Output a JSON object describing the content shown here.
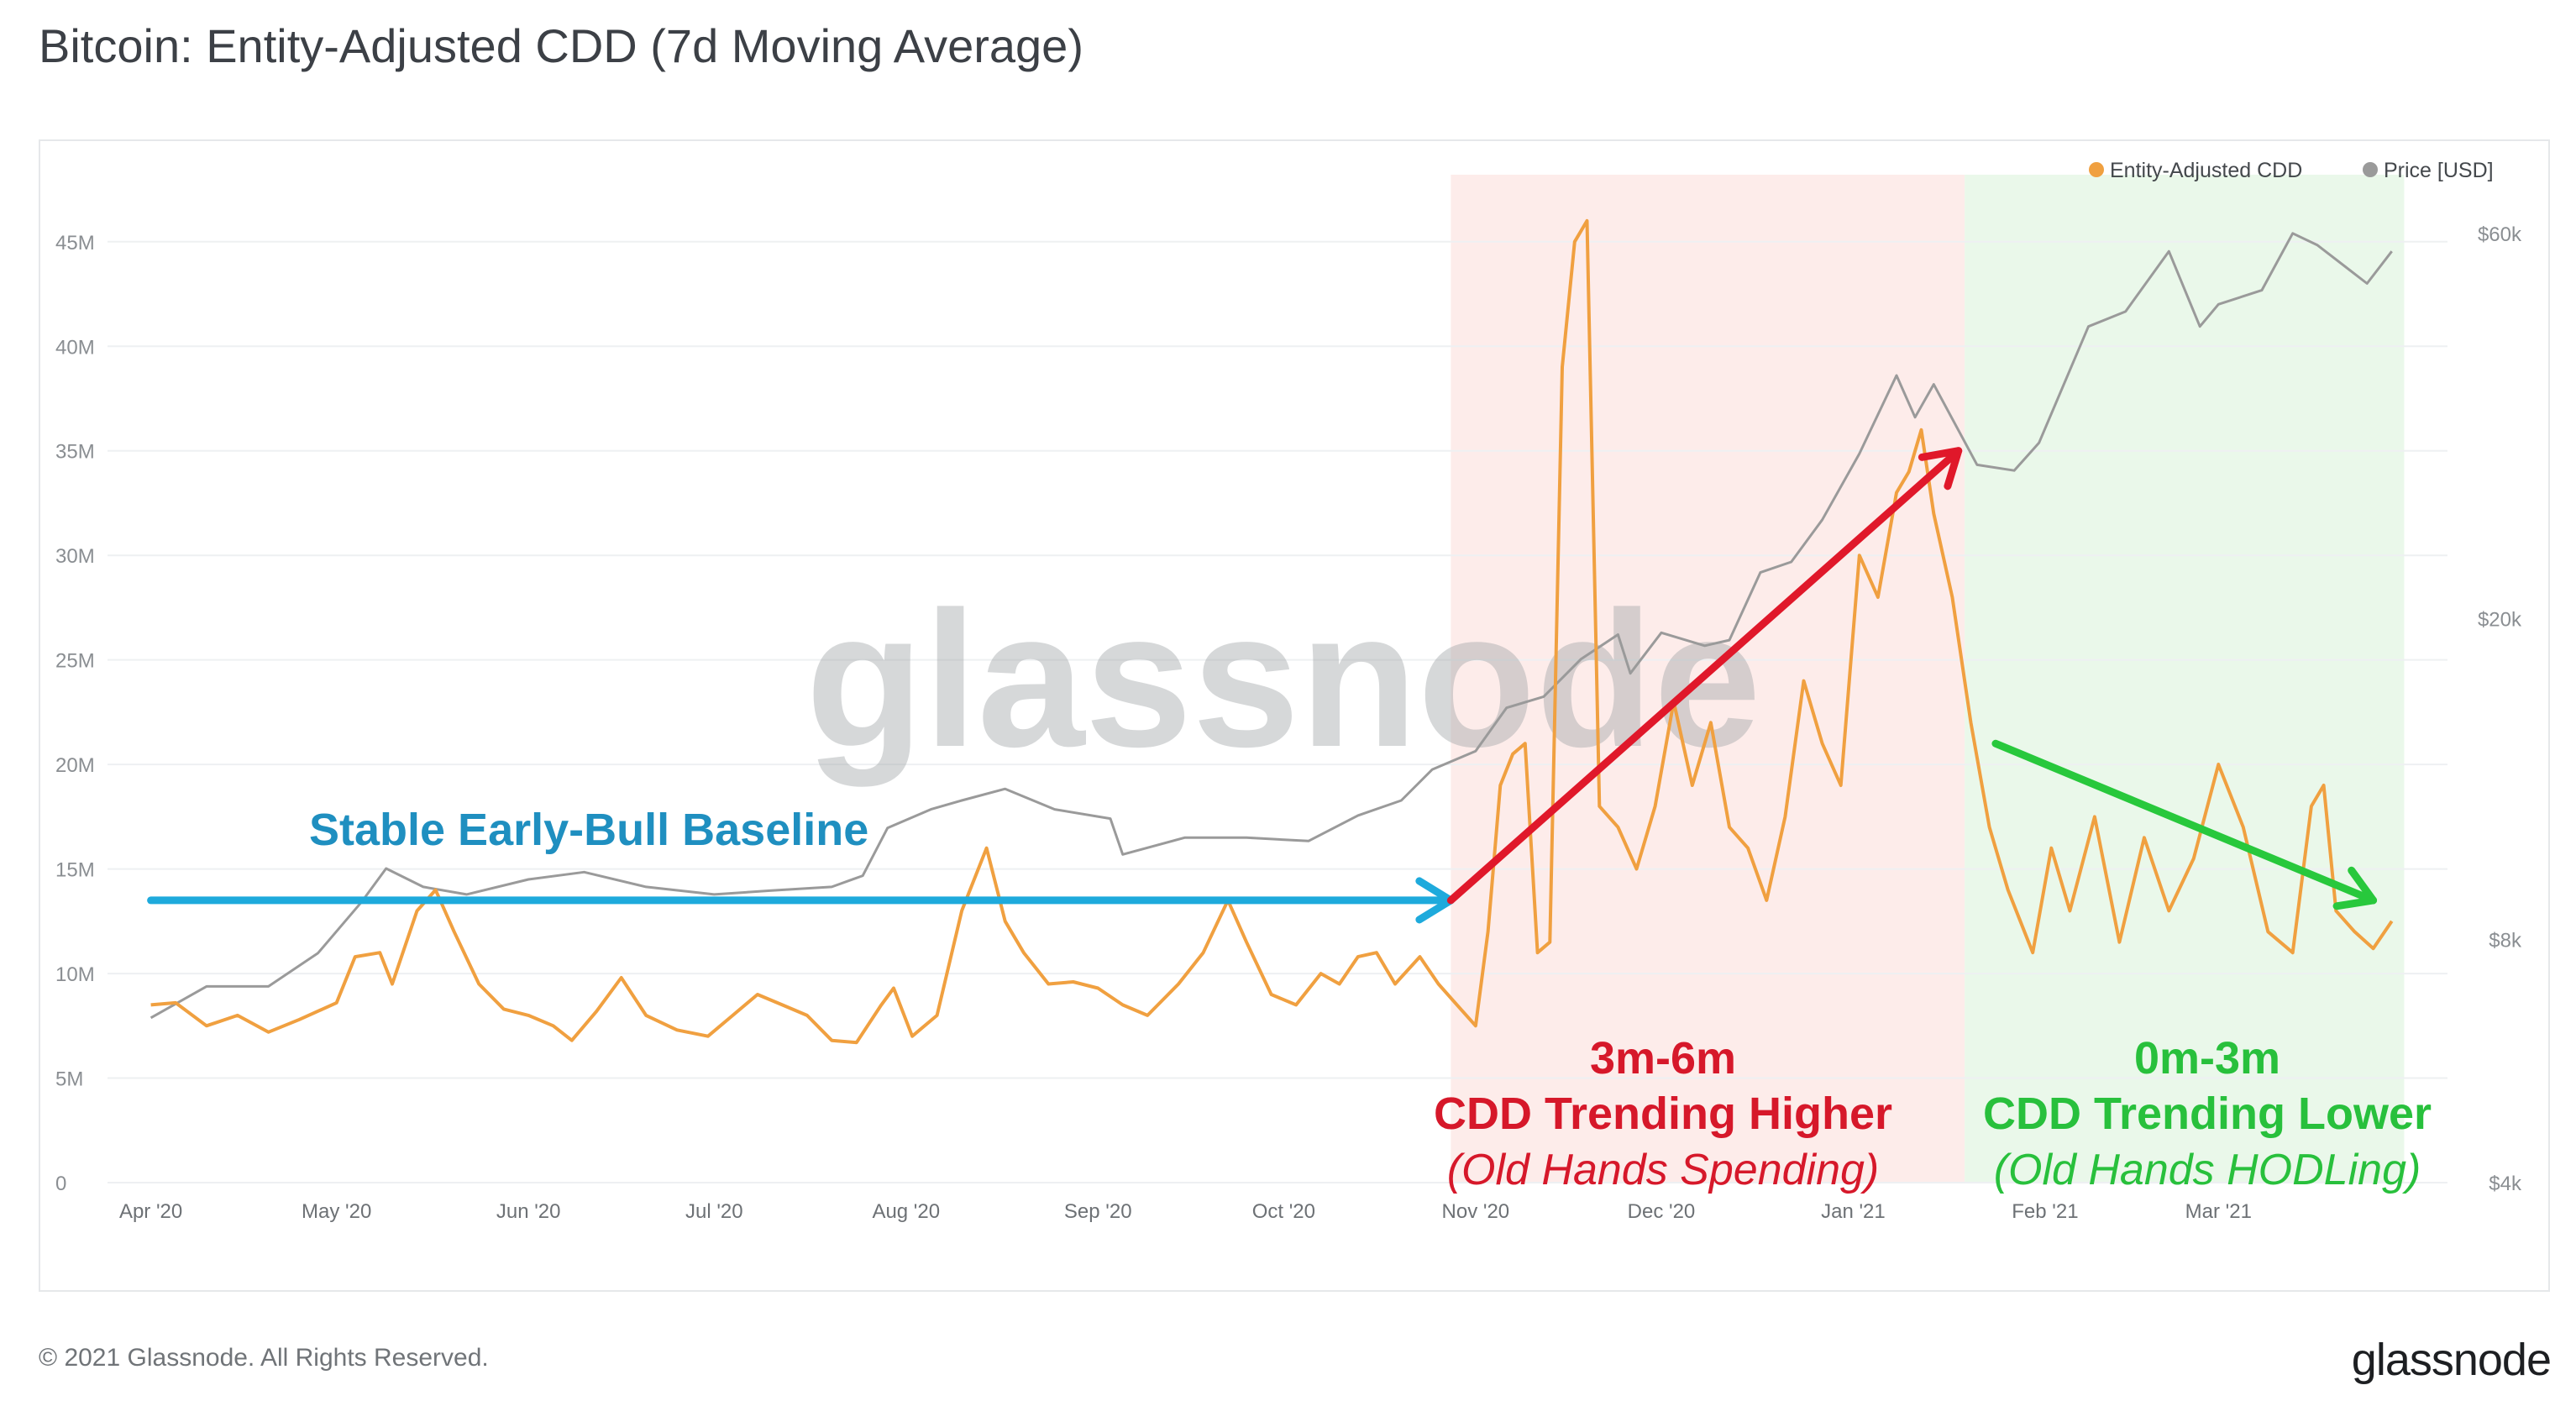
{
  "title": "Bitcoin: Entity-Adjusted CDD (7d Moving Average)",
  "copyright": "© 2021 Glassnode. All Rights Reserved.",
  "brand": "glassnode",
  "watermark": "glassnode",
  "colors": {
    "cdd": "#f0a040",
    "price": "#9a9a9a",
    "baseline_arrow": "#1eaadc",
    "higher_arrow": "#e0182a",
    "lower_arrow": "#28c83c",
    "higher_band": "#fdecea",
    "lower_band": "#eaf8ea",
    "baseline_text": "#1f8fc0",
    "higher_text": "#d6182a",
    "lower_text": "#28c03c"
  },
  "icons": {
    "legend_marker": "circle-dot-icon"
  },
  "chart_data": {
    "type": "line",
    "x_ticks": [
      "Apr '20",
      "May '20",
      "Jun '20",
      "Jul '20",
      "Aug '20",
      "Sep '20",
      "Oct '20",
      "Nov '20",
      "Dec '20",
      "Jan '21",
      "Feb '21",
      "Mar '21"
    ],
    "y_left_ticks": [
      "0",
      "5M",
      "10M",
      "15M",
      "20M",
      "25M",
      "30M",
      "35M",
      "40M",
      "45M"
    ],
    "y_left_range": [
      0,
      47000000
    ],
    "y_right_ticks": [
      "$4k",
      "$8k",
      "$20k",
      "$60k"
    ],
    "y_right_scale": "log",
    "y_right_range": [
      4000,
      66000
    ],
    "grid": true,
    "legend": {
      "position": "top-right",
      "items": [
        {
          "label": "Entity-Adjusted CDD",
          "color": "#f0a040"
        },
        {
          "label": "Price [USD]",
          "color": "#9a9a9a"
        }
      ]
    },
    "series": [
      {
        "name": "Entity-Adjusted CDD",
        "axis": "left",
        "color": "#f0a040",
        "points": [
          [
            "2020-04-01",
            8500000
          ],
          [
            "2020-04-05",
            8600000
          ],
          [
            "2020-04-10",
            7500000
          ],
          [
            "2020-04-15",
            8000000
          ],
          [
            "2020-04-20",
            7200000
          ],
          [
            "2020-04-25",
            7800000
          ],
          [
            "2020-05-01",
            8600000
          ],
          [
            "2020-05-04",
            10800000
          ],
          [
            "2020-05-08",
            11000000
          ],
          [
            "2020-05-10",
            9500000
          ],
          [
            "2020-05-14",
            13000000
          ],
          [
            "2020-05-17",
            14000000
          ],
          [
            "2020-05-20",
            12000000
          ],
          [
            "2020-05-24",
            9500000
          ],
          [
            "2020-05-28",
            8300000
          ],
          [
            "2020-06-01",
            8000000
          ],
          [
            "2020-06-05",
            7500000
          ],
          [
            "2020-06-08",
            6800000
          ],
          [
            "2020-06-12",
            8200000
          ],
          [
            "2020-06-16",
            9800000
          ],
          [
            "2020-06-20",
            8000000
          ],
          [
            "2020-06-25",
            7300000
          ],
          [
            "2020-06-30",
            7000000
          ],
          [
            "2020-07-04",
            8000000
          ],
          [
            "2020-07-08",
            9000000
          ],
          [
            "2020-07-12",
            8500000
          ],
          [
            "2020-07-16",
            8000000
          ],
          [
            "2020-07-20",
            6800000
          ],
          [
            "2020-07-24",
            6700000
          ],
          [
            "2020-07-28",
            8500000
          ],
          [
            "2020-07-30",
            9300000
          ],
          [
            "2020-08-02",
            7000000
          ],
          [
            "2020-08-06",
            8000000
          ],
          [
            "2020-08-10",
            13000000
          ],
          [
            "2020-08-14",
            16000000
          ],
          [
            "2020-08-17",
            12500000
          ],
          [
            "2020-08-20",
            11000000
          ],
          [
            "2020-08-24",
            9500000
          ],
          [
            "2020-08-28",
            9600000
          ],
          [
            "2020-09-01",
            9300000
          ],
          [
            "2020-09-05",
            8500000
          ],
          [
            "2020-09-09",
            8000000
          ],
          [
            "2020-09-14",
            9500000
          ],
          [
            "2020-09-18",
            11000000
          ],
          [
            "2020-09-22",
            13500000
          ],
          [
            "2020-09-25",
            11500000
          ],
          [
            "2020-09-29",
            9000000
          ],
          [
            "2020-10-03",
            8500000
          ],
          [
            "2020-10-07",
            10000000
          ],
          [
            "2020-10-10",
            9500000
          ],
          [
            "2020-10-13",
            10800000
          ],
          [
            "2020-10-16",
            11000000
          ],
          [
            "2020-10-19",
            9500000
          ],
          [
            "2020-10-23",
            10800000
          ],
          [
            "2020-10-26",
            9500000
          ],
          [
            "2020-10-29",
            8500000
          ],
          [
            "2020-11-01",
            7500000
          ],
          [
            "2020-11-03",
            12000000
          ],
          [
            "2020-11-05",
            19000000
          ],
          [
            "2020-11-07",
            20500000
          ],
          [
            "2020-11-09",
            21000000
          ],
          [
            "2020-11-11",
            11000000
          ],
          [
            "2020-11-13",
            11500000
          ],
          [
            "2020-11-15",
            39000000
          ],
          [
            "2020-11-17",
            45000000
          ],
          [
            "2020-11-19",
            46000000
          ],
          [
            "2020-11-21",
            18000000
          ],
          [
            "2020-11-24",
            17000000
          ],
          [
            "2020-11-27",
            15000000
          ],
          [
            "2020-11-30",
            18000000
          ],
          [
            "2020-12-03",
            23000000
          ],
          [
            "2020-12-06",
            19000000
          ],
          [
            "2020-12-09",
            22000000
          ],
          [
            "2020-12-12",
            17000000
          ],
          [
            "2020-12-15",
            16000000
          ],
          [
            "2020-12-18",
            13500000
          ],
          [
            "2020-12-21",
            17500000
          ],
          [
            "2020-12-24",
            24000000
          ],
          [
            "2020-12-27",
            21000000
          ],
          [
            "2020-12-30",
            19000000
          ],
          [
            "2021-01-02",
            30000000
          ],
          [
            "2021-01-05",
            28000000
          ],
          [
            "2021-01-08",
            33000000
          ],
          [
            "2021-01-10",
            34000000
          ],
          [
            "2021-01-12",
            36000000
          ],
          [
            "2021-01-14",
            32000000
          ],
          [
            "2021-01-17",
            28000000
          ],
          [
            "2021-01-20",
            22000000
          ],
          [
            "2021-01-23",
            17000000
          ],
          [
            "2021-01-26",
            14000000
          ],
          [
            "2021-01-30",
            11000000
          ],
          [
            "2021-02-02",
            16000000
          ],
          [
            "2021-02-05",
            13000000
          ],
          [
            "2021-02-09",
            17500000
          ],
          [
            "2021-02-13",
            11500000
          ],
          [
            "2021-02-17",
            16500000
          ],
          [
            "2021-02-21",
            13000000
          ],
          [
            "2021-02-25",
            15500000
          ],
          [
            "2021-03-01",
            20000000
          ],
          [
            "2021-03-05",
            17000000
          ],
          [
            "2021-03-09",
            12000000
          ],
          [
            "2021-03-13",
            11000000
          ],
          [
            "2021-03-16",
            18000000
          ],
          [
            "2021-03-18",
            19000000
          ],
          [
            "2021-03-20",
            13000000
          ],
          [
            "2021-03-23",
            12000000
          ],
          [
            "2021-03-26",
            11200000
          ],
          [
            "2021-03-29",
            12500000
          ]
        ]
      },
      {
        "name": "Price [USD]",
        "axis": "right",
        "color": "#9a9a9a",
        "points": [
          [
            "2020-04-01",
            6400
          ],
          [
            "2020-04-10",
            7000
          ],
          [
            "2020-04-20",
            7000
          ],
          [
            "2020-04-28",
            7700
          ],
          [
            "2020-05-05",
            8900
          ],
          [
            "2020-05-09",
            9800
          ],
          [
            "2020-05-15",
            9300
          ],
          [
            "2020-05-22",
            9100
          ],
          [
            "2020-06-01",
            9500
          ],
          [
            "2020-06-10",
            9700
          ],
          [
            "2020-06-20",
            9300
          ],
          [
            "2020-07-01",
            9100
          ],
          [
            "2020-07-10",
            9200
          ],
          [
            "2020-07-20",
            9300
          ],
          [
            "2020-07-25",
            9600
          ],
          [
            "2020-07-29",
            11000
          ],
          [
            "2020-08-05",
            11600
          ],
          [
            "2020-08-10",
            11900
          ],
          [
            "2020-08-17",
            12300
          ],
          [
            "2020-08-25",
            11600
          ],
          [
            "2020-09-03",
            11300
          ],
          [
            "2020-09-05",
            10200
          ],
          [
            "2020-09-15",
            10700
          ],
          [
            "2020-09-25",
            10700
          ],
          [
            "2020-10-05",
            10600
          ],
          [
            "2020-10-13",
            11400
          ],
          [
            "2020-10-20",
            11900
          ],
          [
            "2020-10-25",
            13000
          ],
          [
            "2020-11-01",
            13700
          ],
          [
            "2020-11-06",
            15500
          ],
          [
            "2020-11-12",
            16000
          ],
          [
            "2020-11-18",
            17800
          ],
          [
            "2020-11-24",
            19100
          ],
          [
            "2020-11-26",
            17100
          ],
          [
            "2020-12-01",
            19200
          ],
          [
            "2020-12-08",
            18500
          ],
          [
            "2020-12-12",
            18800
          ],
          [
            "2020-12-17",
            22800
          ],
          [
            "2020-12-22",
            23500
          ],
          [
            "2020-12-27",
            26500
          ],
          [
            "2021-01-02",
            32000
          ],
          [
            "2021-01-08",
            40000
          ],
          [
            "2021-01-11",
            35500
          ],
          [
            "2021-01-14",
            39000
          ],
          [
            "2021-01-21",
            31000
          ],
          [
            "2021-01-27",
            30500
          ],
          [
            "2021-01-31",
            33000
          ],
          [
            "2021-02-08",
            46000
          ],
          [
            "2021-02-14",
            48000
          ],
          [
            "2021-02-21",
            57000
          ],
          [
            "2021-02-26",
            46000
          ],
          [
            "2021-03-01",
            49000
          ],
          [
            "2021-03-08",
            51000
          ],
          [
            "2021-03-13",
            60000
          ],
          [
            "2021-03-17",
            58000
          ],
          [
            "2021-03-25",
            52000
          ],
          [
            "2021-03-29",
            57000
          ]
        ]
      }
    ],
    "regions": [
      {
        "from": "2020-10-28",
        "to": "2021-01-19",
        "color": "#fdecea"
      },
      {
        "from": "2021-01-19",
        "to": "2021-03-31",
        "color": "#eaf8ea"
      }
    ],
    "arrows": [
      {
        "from": [
          "2020-04-01",
          13500000
        ],
        "to": [
          "2020-10-28",
          13500000
        ],
        "color": "#1eaadc"
      },
      {
        "from": [
          "2020-10-28",
          13500000
        ],
        "to": [
          "2021-01-18",
          35000000
        ],
        "color": "#e0182a"
      },
      {
        "from": [
          "2021-01-24",
          21000000
        ],
        "to": [
          "2021-03-26",
          13500000
        ],
        "color": "#28c83c"
      }
    ],
    "annotations": {
      "baseline": {
        "text": "Stable Early-Bull Baseline",
        "color": "#1f8fc0"
      },
      "higher": {
        "line1": "3m-6m",
        "line2": "CDD Trending Higher",
        "line3": "(Old Hands Spending)",
        "color": "#d6182a"
      },
      "lower": {
        "line1": "0m-3m",
        "line2": "CDD Trending Lower",
        "line3": "(Old Hands HODLing)",
        "color": "#28c03c"
      }
    }
  }
}
